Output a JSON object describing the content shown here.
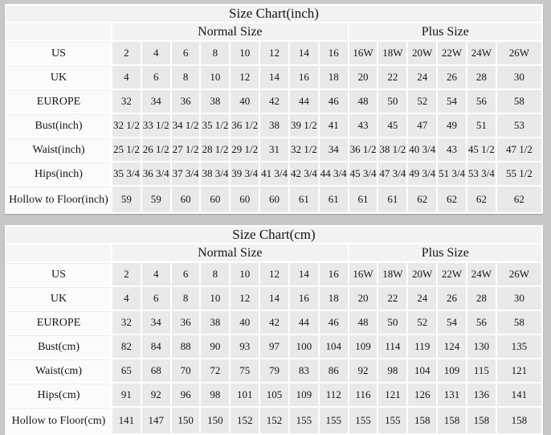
{
  "page": {
    "background": "#c8c8c8",
    "cell_bg": "#e9e9e9",
    "label_bg": "#fbfbfb",
    "header_bg": "#f2f2f2",
    "grid_color": "#ffffff",
    "text_color": "#151515"
  },
  "chart_data": [
    {
      "type": "table",
      "title": "Size Chart(inch)",
      "column_groups": [
        {
          "label": "Normal Size",
          "span": 8
        },
        {
          "label": "Plus Size",
          "span": 6
        }
      ],
      "rows": [
        {
          "label": "US",
          "values": [
            "2",
            "4",
            "6",
            "8",
            "10",
            "12",
            "14",
            "16",
            "16W",
            "18W",
            "20W",
            "22W",
            "24W",
            "26W"
          ]
        },
        {
          "label": "UK",
          "values": [
            "4",
            "6",
            "8",
            "10",
            "12",
            "14",
            "16",
            "18",
            "20",
            "22",
            "24",
            "26",
            "28",
            "30"
          ]
        },
        {
          "label": "EUROPE",
          "values": [
            "32",
            "34",
            "36",
            "38",
            "40",
            "42",
            "44",
            "46",
            "48",
            "50",
            "52",
            "54",
            "56",
            "58"
          ]
        },
        {
          "label": "Bust(inch)",
          "values": [
            "32 1/2",
            "33 1/2",
            "34 1/2",
            "35 1/2",
            "36 1/2",
            "38",
            "39 1/2",
            "41",
            "43",
            "45",
            "47",
            "49",
            "51",
            "53"
          ]
        },
        {
          "label": "Waist(inch)",
          "values": [
            "25 1/2",
            "26 1/2",
            "27 1/2",
            "28 1/2",
            "29 1/2",
            "31",
            "32 1/2",
            "34",
            "36 1/2",
            "38 1/2",
            "40 3/4",
            "43",
            "45 1/2",
            "47 1/2"
          ]
        },
        {
          "label": "Hips(inch)",
          "values": [
            "35 3/4",
            "36 3/4",
            "37 3/4",
            "38 3/4",
            "39 3/4",
            "41 3/4",
            "42 3/4",
            "44 3/4",
            "45 3/4",
            "47 3/4",
            "49 3/4",
            "51 3/4",
            "53 3/4",
            "55 1/2"
          ]
        },
        {
          "label": "Hollow to Floor(inch)",
          "values": [
            "59",
            "59",
            "60",
            "60",
            "60",
            "60",
            "61",
            "61",
            "61",
            "61",
            "62",
            "62",
            "62",
            "62"
          ]
        }
      ]
    },
    {
      "type": "table",
      "title": "Size Chart(cm)",
      "column_groups": [
        {
          "label": "Normal Size",
          "span": 8
        },
        {
          "label": "Plus Size",
          "span": 6
        }
      ],
      "rows": [
        {
          "label": "US",
          "values": [
            "2",
            "4",
            "6",
            "8",
            "10",
            "12",
            "14",
            "16",
            "16W",
            "18W",
            "20W",
            "22W",
            "24W",
            "26W"
          ]
        },
        {
          "label": "UK",
          "values": [
            "4",
            "6",
            "8",
            "10",
            "12",
            "14",
            "16",
            "18",
            "20",
            "22",
            "24",
            "26",
            "28",
            "30"
          ]
        },
        {
          "label": "EUROPE",
          "values": [
            "32",
            "34",
            "36",
            "38",
            "40",
            "42",
            "44",
            "46",
            "48",
            "50",
            "52",
            "54",
            "56",
            "58"
          ]
        },
        {
          "label": "Bust(cm)",
          "values": [
            "82",
            "84",
            "88",
            "90",
            "93",
            "97",
            "100",
            "104",
            "109",
            "114",
            "119",
            "124",
            "130",
            "135"
          ]
        },
        {
          "label": "Waist(cm)",
          "values": [
            "65",
            "68",
            "70",
            "72",
            "75",
            "79",
            "83",
            "86",
            "92",
            "98",
            "104",
            "109",
            "115",
            "121"
          ]
        },
        {
          "label": "Hips(cm)",
          "values": [
            "91",
            "92",
            "96",
            "98",
            "101",
            "105",
            "109",
            "112",
            "116",
            "121",
            "126",
            "131",
            "136",
            "141"
          ]
        },
        {
          "label": "Hollow to Floor(cm)",
          "values": [
            "141",
            "147",
            "150",
            "150",
            "152",
            "152",
            "155",
            "155",
            "155",
            "155",
            "158",
            "158",
            "158",
            "158"
          ]
        }
      ]
    }
  ]
}
